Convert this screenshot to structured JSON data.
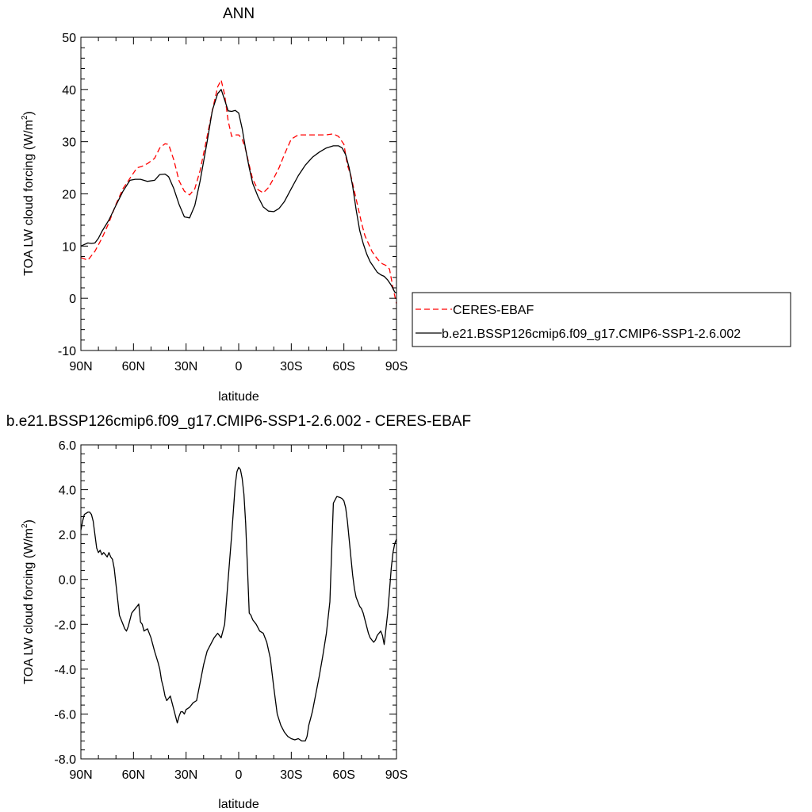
{
  "chart_data": [
    {
      "type": "line",
      "title": "ANN",
      "xlabel": "latitude",
      "ylabel": "TOA LW cloud forcing (W/m",
      "ylabel_sup": "2",
      "ylabel_close": ")",
      "xlim": [
        90,
        -90
      ],
      "ylim": [
        -10,
        50
      ],
      "xticks": [
        {
          "value": 90,
          "label": "90N"
        },
        {
          "value": 60,
          "label": "60N"
        },
        {
          "value": 30,
          "label": "30N"
        },
        {
          "value": 0,
          "label": "0"
        },
        {
          "value": -30,
          "label": "30S"
        },
        {
          "value": -60,
          "label": "60S"
        },
        {
          "value": -90,
          "label": "90S"
        }
      ],
      "yticks": [
        {
          "value": -10,
          "label": "-10"
        },
        {
          "value": 0,
          "label": "0"
        },
        {
          "value": 10,
          "label": "10"
        },
        {
          "value": 20,
          "label": "20"
        },
        {
          "value": 30,
          "label": "30"
        },
        {
          "value": 40,
          "label": "40"
        },
        {
          "value": 50,
          "label": "50"
        }
      ],
      "legend_position": "right",
      "series": [
        {
          "name": "CERES-EBAF",
          "color": "#ff0000",
          "dash": "dashed",
          "x": [
            90,
            86,
            82,
            78,
            74,
            70,
            66,
            62,
            58,
            55,
            52,
            48,
            45,
            42,
            40,
            37,
            34,
            31,
            28,
            25,
            22,
            18,
            15,
            12,
            10,
            8,
            6,
            4,
            2,
            0,
            -2,
            -4,
            -6,
            -8,
            -11,
            -14,
            -17,
            -20,
            -23,
            -26,
            -30,
            -34,
            -38,
            -42,
            -46,
            -50,
            -54,
            -57,
            -60,
            -62,
            -64,
            -66,
            -68,
            -70,
            -72,
            -74,
            -76,
            -78,
            -80,
            -82,
            -84,
            -86,
            -88,
            -90
          ],
          "y": [
            7.8,
            7.3,
            9.0,
            11.5,
            14.5,
            18.0,
            21.0,
            23.0,
            25.0,
            25.3,
            25.8,
            26.8,
            28.8,
            29.6,
            29.5,
            26.5,
            22.5,
            20.5,
            19.8,
            21.0,
            24.5,
            31.0,
            36.0,
            40.5,
            41.8,
            39.0,
            34.0,
            31.0,
            31.3,
            31.3,
            30.5,
            28.5,
            25.5,
            22.8,
            20.8,
            20.2,
            21.2,
            23.0,
            25.0,
            27.5,
            30.5,
            31.3,
            31.3,
            31.3,
            31.3,
            31.3,
            31.5,
            31.0,
            29.5,
            25.5,
            23.5,
            20.5,
            17.5,
            14.5,
            12.0,
            10.5,
            9.0,
            8.0,
            7.2,
            6.6,
            6.3,
            5.6,
            2.0,
            -1.0
          ]
        },
        {
          "name": "b.e21.BSSP126cmip6.f09_g17.CMIP6-SSP1-2.6.002",
          "color": "#000000",
          "dash": "solid",
          "x": [
            90,
            86,
            84,
            82,
            80,
            78,
            74,
            70,
            66,
            62,
            59,
            56,
            52,
            48,
            45,
            42,
            40,
            37,
            34,
            31,
            28,
            25,
            22,
            18,
            15,
            12,
            10,
            8,
            6,
            4,
            2,
            0,
            -2,
            -4,
            -6,
            -8,
            -11,
            -14,
            -17,
            -20,
            -23,
            -26,
            -30,
            -34,
            -38,
            -42,
            -46,
            -50,
            -54,
            -57,
            -59,
            -61,
            -63,
            -65,
            -67,
            -69,
            -71,
            -73,
            -75,
            -77,
            -79,
            -81,
            -83,
            -85,
            -87,
            -89,
            -90
          ],
          "y": [
            10.0,
            10.6,
            10.5,
            10.6,
            11.5,
            12.8,
            15.0,
            17.8,
            20.5,
            22.6,
            22.8,
            22.8,
            22.4,
            22.6,
            23.7,
            23.8,
            23.3,
            21.0,
            18.0,
            15.6,
            15.4,
            17.8,
            22.5,
            30.0,
            36.0,
            39.2,
            40.0,
            38.0,
            35.9,
            35.8,
            36.0,
            35.5,
            32.5,
            28.5,
            25.0,
            22.0,
            19.5,
            17.5,
            16.7,
            16.6,
            17.2,
            18.5,
            21.0,
            23.5,
            25.5,
            27.0,
            28.0,
            28.8,
            29.2,
            29.2,
            28.8,
            27.5,
            25.0,
            21.5,
            17.0,
            13.0,
            10.5,
            8.5,
            7.0,
            6.0,
            5.0,
            4.5,
            4.2,
            3.5,
            2.5,
            1.2,
            1.0
          ]
        }
      ]
    },
    {
      "type": "line",
      "title": "b.e21.BSSP126cmip6.f09_g17.CMIP6-SSP1-2.6.002 - CERES-EBAF",
      "xlabel": "latitude",
      "ylabel": "TOA LW cloud forcing (W/m",
      "ylabel_sup": "2",
      "ylabel_close": ")",
      "xlim": [
        90,
        -90
      ],
      "ylim": [
        -8,
        6
      ],
      "xticks": [
        {
          "value": 90,
          "label": "90N"
        },
        {
          "value": 60,
          "label": "60N"
        },
        {
          "value": 30,
          "label": "30N"
        },
        {
          "value": 0,
          "label": "0"
        },
        {
          "value": -30,
          "label": "30S"
        },
        {
          "value": -60,
          "label": "60S"
        },
        {
          "value": -90,
          "label": "90S"
        }
      ],
      "yticks": [
        {
          "value": -8,
          "label": "-8.0"
        },
        {
          "value": -6,
          "label": "-6.0"
        },
        {
          "value": -4,
          "label": "-4.0"
        },
        {
          "value": -2,
          "label": "-2.0"
        },
        {
          "value": 0,
          "label": "0.0"
        },
        {
          "value": 2,
          "label": "2.0"
        },
        {
          "value": 4,
          "label": "4.0"
        },
        {
          "value": 6,
          "label": "6.0"
        }
      ],
      "series": [
        {
          "color": "#000000",
          "dash": "solid",
          "x": [
            90,
            89,
            88,
            86,
            85,
            84,
            83,
            82,
            81,
            80,
            79,
            78,
            77,
            76,
            75,
            74,
            73,
            72,
            71,
            70,
            68,
            66,
            65,
            64,
            63,
            62,
            61,
            60,
            58,
            57,
            56,
            55,
            54,
            52,
            50,
            48,
            46,
            45,
            44,
            43,
            42,
            41,
            40,
            39,
            38,
            37,
            36,
            35,
            34,
            33,
            32,
            31,
            30,
            28,
            26,
            24,
            22,
            21,
            20,
            19,
            18,
            16,
            14,
            12,
            10,
            8,
            6,
            4,
            2,
            1,
            0,
            -1,
            -2,
            -3,
            -4,
            -5,
            -6,
            -7,
            -8,
            -10,
            -12,
            -14,
            -16,
            -18,
            -20,
            -22,
            -24,
            -26,
            -28,
            -30,
            -32,
            -34,
            -36,
            -38,
            -39,
            -40,
            -41,
            -42,
            -44,
            -46,
            -48,
            -50,
            -52,
            -54,
            -56,
            -58,
            -59,
            -60,
            -61,
            -62,
            -63,
            -64,
            -65,
            -66,
            -67,
            -68,
            -69,
            -70,
            -71,
            -72,
            -73,
            -74,
            -75,
            -76,
            -77,
            -78,
            -79,
            -80,
            -81,
            -82,
            -83,
            -84,
            -85,
            -86,
            -87,
            -88,
            -89,
            -90
          ],
          "y": [
            2.2,
            2.6,
            2.9,
            3.0,
            3.0,
            2.9,
            2.6,
            2.0,
            1.4,
            1.2,
            1.3,
            1.1,
            1.2,
            1.1,
            1.0,
            1.2,
            1.0,
            0.9,
            0.5,
            -0.2,
            -1.6,
            -2.0,
            -2.2,
            -2.3,
            -2.1,
            -1.8,
            -1.5,
            -1.4,
            -1.2,
            -1.1,
            -1.9,
            -2.0,
            -2.3,
            -2.2,
            -2.6,
            -3.2,
            -3.7,
            -4.0,
            -4.5,
            -4.8,
            -5.2,
            -5.4,
            -5.3,
            -5.2,
            -5.5,
            -5.8,
            -6.1,
            -6.4,
            -6.1,
            -5.9,
            -5.9,
            -6.0,
            -5.8,
            -5.7,
            -5.5,
            -5.4,
            -4.6,
            -4.2,
            -3.8,
            -3.5,
            -3.2,
            -2.9,
            -2.6,
            -2.4,
            -2.6,
            -2.0,
            0.0,
            2.0,
            4.2,
            4.8,
            5.0,
            4.9,
            4.5,
            3.8,
            2.5,
            0.5,
            -1.5,
            -1.6,
            -1.8,
            -2.0,
            -2.3,
            -2.4,
            -2.8,
            -3.5,
            -4.8,
            -6.0,
            -6.5,
            -6.8,
            -7.0,
            -7.1,
            -7.15,
            -7.1,
            -7.2,
            -7.2,
            -7.0,
            -6.5,
            -6.2,
            -5.9,
            -5.1,
            -4.3,
            -3.4,
            -2.4,
            -1.0,
            3.4,
            3.7,
            3.65,
            3.6,
            3.5,
            3.2,
            2.6,
            1.8,
            1.0,
            0.2,
            -0.4,
            -0.8,
            -1.0,
            -1.2,
            -1.3,
            -1.5,
            -1.8,
            -2.1,
            -2.4,
            -2.6,
            -2.7,
            -2.8,
            -2.7,
            -2.5,
            -2.4,
            -2.3,
            -2.5,
            -2.9,
            -2.2,
            -1.5,
            -0.5,
            0.5,
            1.2,
            1.6,
            1.8
          ]
        }
      ]
    }
  ]
}
